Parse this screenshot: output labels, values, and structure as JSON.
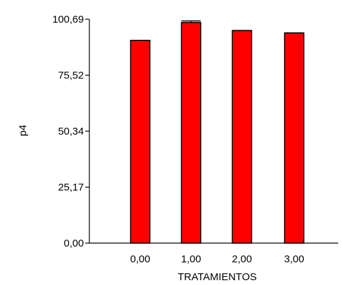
{
  "chart_data": {
    "type": "bar",
    "categories": [
      "0,00",
      "1,00",
      "2,00",
      "3,00"
    ],
    "values": [
      91.2,
      99.2,
      95.6,
      94.5
    ],
    "error_bars": [
      0.0,
      0.7,
      0.0,
      0.0
    ],
    "title": "",
    "xlabel": "TRATAMIENTOS",
    "ylabel": "p4",
    "ylim": [
      0,
      100.69
    ],
    "yticks": [
      "0,00",
      "25,17",
      "50,34",
      "75,52",
      "100,69"
    ],
    "ytick_values": [
      0,
      25.17,
      50.34,
      75.52,
      100.69
    ],
    "grid": false,
    "legend": "none",
    "colors": {
      "bar_fill": "#ff0000",
      "bar_stroke": "#000000",
      "axis": "#000000"
    }
  }
}
